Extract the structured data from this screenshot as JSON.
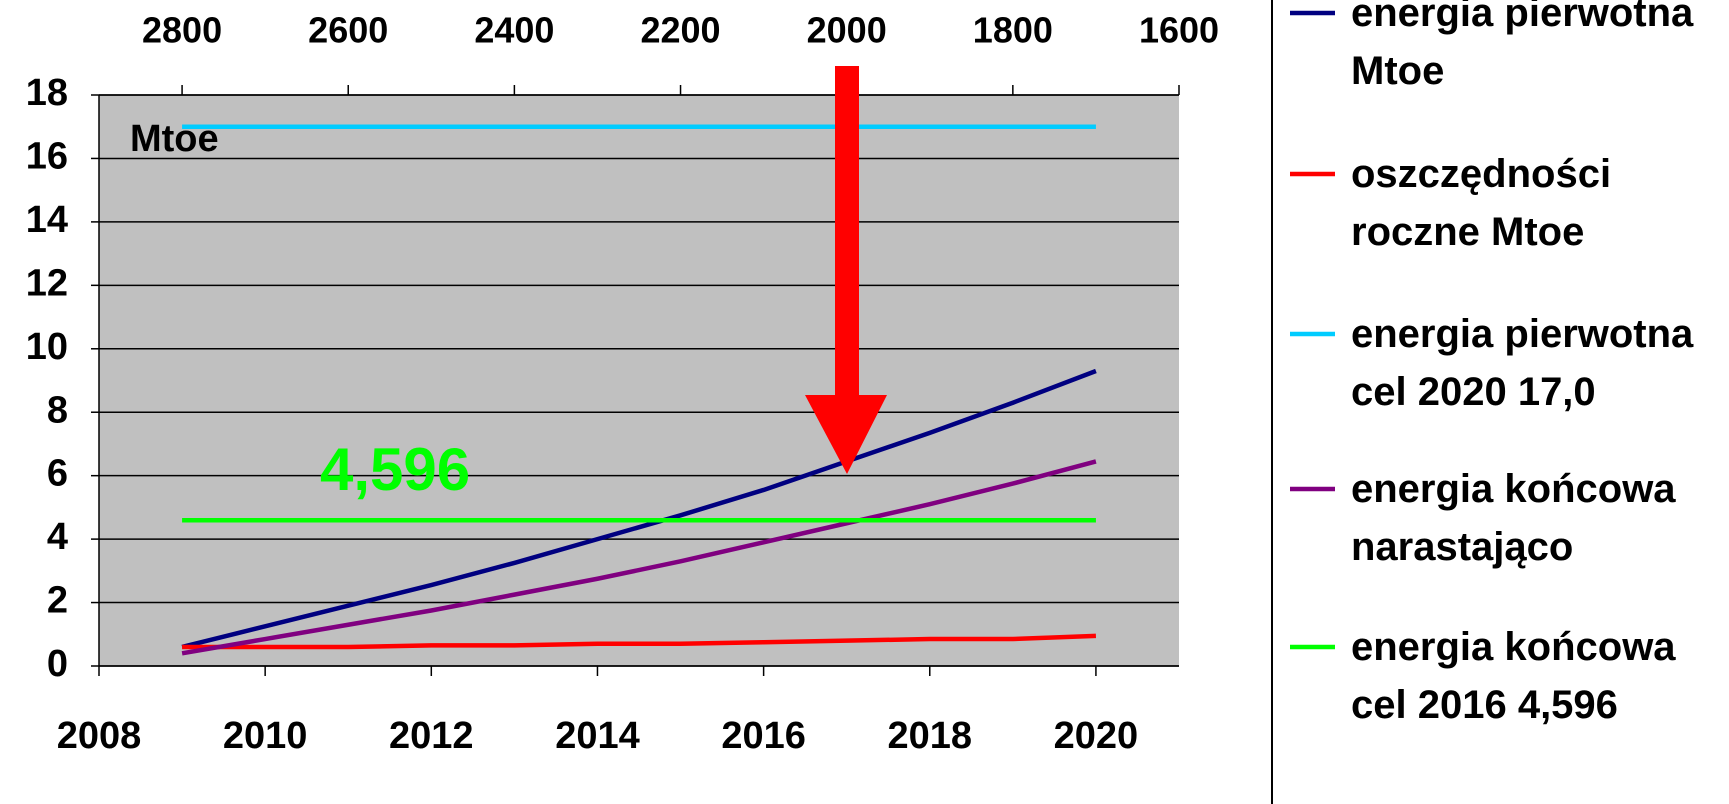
{
  "chart_data": {
    "type": "line",
    "x": [
      2009,
      2010,
      2011,
      2012,
      2013,
      2014,
      2015,
      2016,
      2017,
      2018,
      2019,
      2020
    ],
    "series": [
      {
        "name": "energia pierwotna Mtoe",
        "color": "#000080",
        "values": [
          0.6,
          1.25,
          1.9,
          2.55,
          3.25,
          4.0,
          4.75,
          5.55,
          6.45,
          7.35,
          8.3,
          9.3
        ]
      },
      {
        "name": "oszczędności roczne Mtoe",
        "color": "#ff0000",
        "values": [
          0.6,
          0.6,
          0.6,
          0.65,
          0.65,
          0.7,
          0.7,
          0.75,
          0.8,
          0.85,
          0.85,
          0.95
        ]
      },
      {
        "name": "energia pierwotna cel 2020 17,0",
        "color": "#00ccff",
        "values": [
          17,
          17,
          17,
          17,
          17,
          17,
          17,
          17,
          17,
          17,
          17,
          17
        ]
      },
      {
        "name": "energia końcowa narastająco",
        "color": "#800080",
        "values": [
          0.4,
          0.85,
          1.3,
          1.75,
          2.25,
          2.75,
          3.3,
          3.9,
          4.5,
          5.1,
          5.75,
          6.45
        ]
      },
      {
        "name": "energia końcowa cel 2016 4,596",
        "color": "#00ff00",
        "values": [
          4.596,
          4.596,
          4.596,
          4.596,
          4.596,
          4.596,
          4.596,
          4.596,
          4.596,
          4.596,
          4.596,
          4.596
        ]
      }
    ],
    "xlim": [
      2008,
      2021
    ],
    "xticks": [
      2008,
      2010,
      2012,
      2014,
      2016,
      2018,
      2020
    ],
    "x2lim": [
      2900,
      1600
    ],
    "x2ticks": [
      2800,
      2600,
      2400,
      2200,
      2000,
      1800,
      1600
    ],
    "ylim": [
      0,
      18
    ],
    "yticks": [
      0,
      2,
      4,
      6,
      8,
      10,
      12,
      14,
      16,
      18
    ],
    "grid": true,
    "annotations": [
      "Mtoe",
      "4,596"
    ]
  }
}
